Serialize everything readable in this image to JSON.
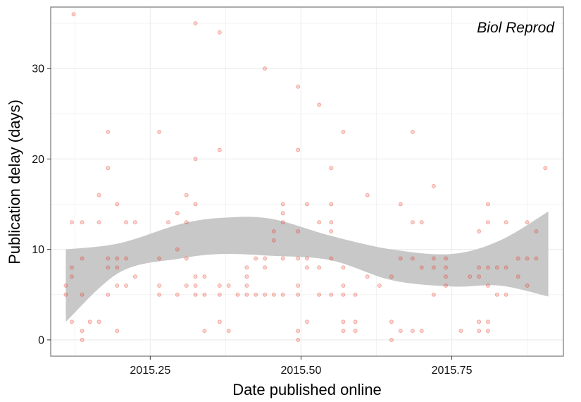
{
  "chart_data": {
    "type": "scatter",
    "title": "",
    "annotation": "Biol Reprod",
    "xlabel": "Date published online",
    "ylabel": "Publication delay (days)",
    "xlim": [
      2015.085,
      2015.935
    ],
    "ylim": [
      -1.8,
      36.8
    ],
    "x_ticks": [
      2015.25,
      2015.5,
      2015.75
    ],
    "x_tick_labels": [
      "2015.25",
      "2015.50",
      "2015.75"
    ],
    "y_ticks": [
      0,
      10,
      20,
      30
    ],
    "y_tick_labels": [
      "0",
      "10",
      "20",
      "30"
    ],
    "grid": true,
    "legend": "none",
    "colors": {
      "points": "#e8392a",
      "band": "#c8c8c8",
      "grid": "#ebebeb",
      "border": "#7f7f7f"
    },
    "points": [
      [
        2015.123,
        36
      ],
      [
        2015.11,
        5
      ],
      [
        2015.11,
        6
      ],
      [
        2015.12,
        13
      ],
      [
        2015.12,
        8
      ],
      [
        2015.12,
        7
      ],
      [
        2015.12,
        2
      ],
      [
        2015.137,
        9
      ],
      [
        2015.137,
        13
      ],
      [
        2015.137,
        5
      ],
      [
        2015.137,
        1
      ],
      [
        2015.137,
        0
      ],
      [
        2015.15,
        2
      ],
      [
        2015.165,
        16
      ],
      [
        2015.165,
        13
      ],
      [
        2015.165,
        2
      ],
      [
        2015.18,
        23
      ],
      [
        2015.18,
        19
      ],
      [
        2015.18,
        9
      ],
      [
        2015.18,
        8
      ],
      [
        2015.18,
        5
      ],
      [
        2015.195,
        15
      ],
      [
        2015.195,
        9
      ],
      [
        2015.195,
        8
      ],
      [
        2015.195,
        6
      ],
      [
        2015.195,
        1
      ],
      [
        2015.21,
        13
      ],
      [
        2015.21,
        9
      ],
      [
        2015.21,
        6
      ],
      [
        2015.225,
        13
      ],
      [
        2015.225,
        7
      ],
      [
        2015.265,
        23
      ],
      [
        2015.265,
        9
      ],
      [
        2015.265,
        6
      ],
      [
        2015.265,
        5
      ],
      [
        2015.28,
        13
      ],
      [
        2015.295,
        14
      ],
      [
        2015.295,
        10
      ],
      [
        2015.295,
        5
      ],
      [
        2015.31,
        16
      ],
      [
        2015.31,
        13
      ],
      [
        2015.31,
        9
      ],
      [
        2015.31,
        6
      ],
      [
        2015.325,
        35
      ],
      [
        2015.325,
        20
      ],
      [
        2015.325,
        15
      ],
      [
        2015.325,
        7
      ],
      [
        2015.325,
        6
      ],
      [
        2015.325,
        5
      ],
      [
        2015.34,
        7
      ],
      [
        2015.34,
        5
      ],
      [
        2015.34,
        1
      ],
      [
        2015.365,
        34
      ],
      [
        2015.365,
        21
      ],
      [
        2015.365,
        6
      ],
      [
        2015.365,
        5
      ],
      [
        2015.365,
        2
      ],
      [
        2015.38,
        6
      ],
      [
        2015.38,
        1
      ],
      [
        2015.395,
        5
      ],
      [
        2015.41,
        8
      ],
      [
        2015.41,
        7
      ],
      [
        2015.41,
        6
      ],
      [
        2015.41,
        5
      ],
      [
        2015.425,
        9
      ],
      [
        2015.425,
        5
      ],
      [
        2015.44,
        30
      ],
      [
        2015.44,
        9
      ],
      [
        2015.44,
        8
      ],
      [
        2015.44,
        5
      ],
      [
        2015.455,
        12
      ],
      [
        2015.455,
        11
      ],
      [
        2015.455,
        5
      ],
      [
        2015.47,
        15
      ],
      [
        2015.47,
        14
      ],
      [
        2015.47,
        13
      ],
      [
        2015.47,
        9
      ],
      [
        2015.47,
        5
      ],
      [
        2015.495,
        28
      ],
      [
        2015.495,
        21
      ],
      [
        2015.495,
        12
      ],
      [
        2015.495,
        9
      ],
      [
        2015.495,
        6
      ],
      [
        2015.495,
        5
      ],
      [
        2015.495,
        1
      ],
      [
        2015.495,
        0
      ],
      [
        2015.51,
        15
      ],
      [
        2015.51,
        9
      ],
      [
        2015.51,
        8
      ],
      [
        2015.51,
        2
      ],
      [
        2015.53,
        26
      ],
      [
        2015.53,
        13
      ],
      [
        2015.53,
        8
      ],
      [
        2015.53,
        5
      ],
      [
        2015.55,
        19
      ],
      [
        2015.55,
        15
      ],
      [
        2015.55,
        13
      ],
      [
        2015.55,
        12
      ],
      [
        2015.55,
        9
      ],
      [
        2015.55,
        5
      ],
      [
        2015.57,
        23
      ],
      [
        2015.57,
        8
      ],
      [
        2015.57,
        6
      ],
      [
        2015.57,
        5
      ],
      [
        2015.57,
        2
      ],
      [
        2015.57,
        1
      ],
      [
        2015.59,
        5
      ],
      [
        2015.59,
        2
      ],
      [
        2015.59,
        1
      ],
      [
        2015.61,
        16
      ],
      [
        2015.61,
        7
      ],
      [
        2015.63,
        6
      ],
      [
        2015.65,
        7
      ],
      [
        2015.65,
        2
      ],
      [
        2015.65,
        0
      ],
      [
        2015.665,
        15
      ],
      [
        2015.665,
        9
      ],
      [
        2015.665,
        1
      ],
      [
        2015.685,
        23
      ],
      [
        2015.685,
        13
      ],
      [
        2015.685,
        9
      ],
      [
        2015.685,
        1
      ],
      [
        2015.7,
        13
      ],
      [
        2015.7,
        8
      ],
      [
        2015.7,
        1
      ],
      [
        2015.72,
        17
      ],
      [
        2015.72,
        9
      ],
      [
        2015.72,
        8
      ],
      [
        2015.72,
        5
      ],
      [
        2015.74,
        9
      ],
      [
        2015.74,
        8
      ],
      [
        2015.74,
        7
      ],
      [
        2015.74,
        6
      ],
      [
        2015.765,
        1
      ],
      [
        2015.78,
        7
      ],
      [
        2015.795,
        12
      ],
      [
        2015.795,
        8
      ],
      [
        2015.795,
        7
      ],
      [
        2015.795,
        2
      ],
      [
        2015.795,
        1
      ],
      [
        2015.81,
        15
      ],
      [
        2015.81,
        13
      ],
      [
        2015.81,
        8
      ],
      [
        2015.81,
        6
      ],
      [
        2015.81,
        2
      ],
      [
        2015.81,
        1
      ],
      [
        2015.825,
        8
      ],
      [
        2015.825,
        5
      ],
      [
        2015.84,
        13
      ],
      [
        2015.84,
        8
      ],
      [
        2015.84,
        5
      ],
      [
        2015.86,
        9
      ],
      [
        2015.86,
        7
      ],
      [
        2015.875,
        13
      ],
      [
        2015.875,
        9
      ],
      [
        2015.875,
        6
      ],
      [
        2015.89,
        12
      ],
      [
        2015.89,
        9
      ],
      [
        2015.905,
        19
      ]
    ],
    "smooth_band": {
      "x": [
        2015.11,
        2015.2,
        2015.3,
        2015.37,
        2015.45,
        2015.55,
        2015.65,
        2015.75,
        2015.83,
        2015.91
      ],
      "upper": [
        10.0,
        10.7,
        12.8,
        13.5,
        13.4,
        11.5,
        10.0,
        9.5,
        11.0,
        14.2
      ],
      "lower": [
        2.0,
        7.5,
        9.0,
        9.5,
        9.3,
        8.8,
        6.6,
        5.9,
        6.0,
        4.8
      ]
    }
  }
}
